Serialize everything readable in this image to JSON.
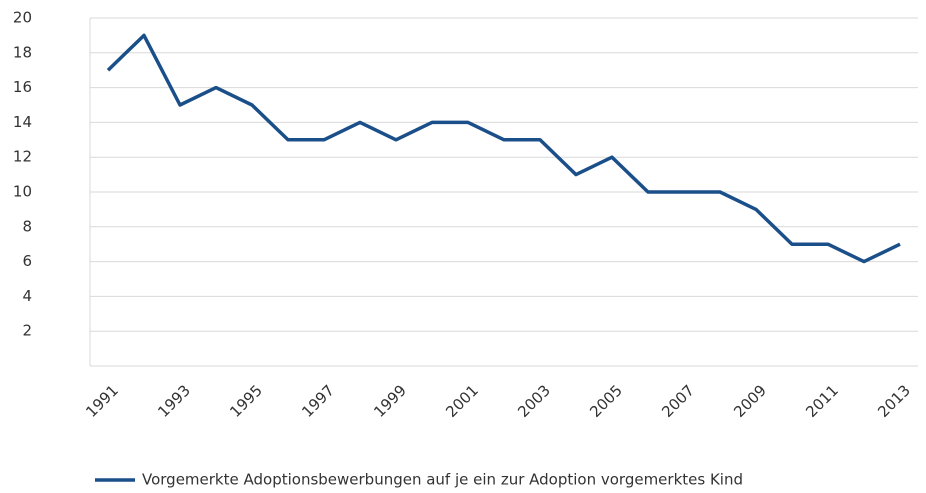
{
  "chart_data": {
    "type": "line",
    "categories": [
      "1991",
      null,
      "1993",
      null,
      "1995",
      null,
      "1997",
      null,
      "1999",
      null,
      "2001",
      null,
      "2003",
      null,
      "2005",
      null,
      "2007",
      null,
      "2009",
      null,
      "2011",
      null,
      "2013"
    ],
    "series": [
      {
        "name": "Vorgemerkte Adoptionsbewerbungen auf je ein zur Adoption vorgemerktes Kind",
        "color": "#1b4f8a",
        "values": [
          17,
          19,
          15,
          16,
          15,
          13,
          13,
          14,
          13,
          14,
          14,
          13,
          13,
          11,
          12,
          10,
          10,
          10,
          9,
          7,
          7,
          6,
          7
        ]
      }
    ],
    "ylim": [
      0,
      20
    ],
    "yticks": [
      2,
      4,
      6,
      8,
      10,
      12,
      14,
      16,
      18,
      20
    ],
    "grid": true,
    "legend": "bottom"
  }
}
